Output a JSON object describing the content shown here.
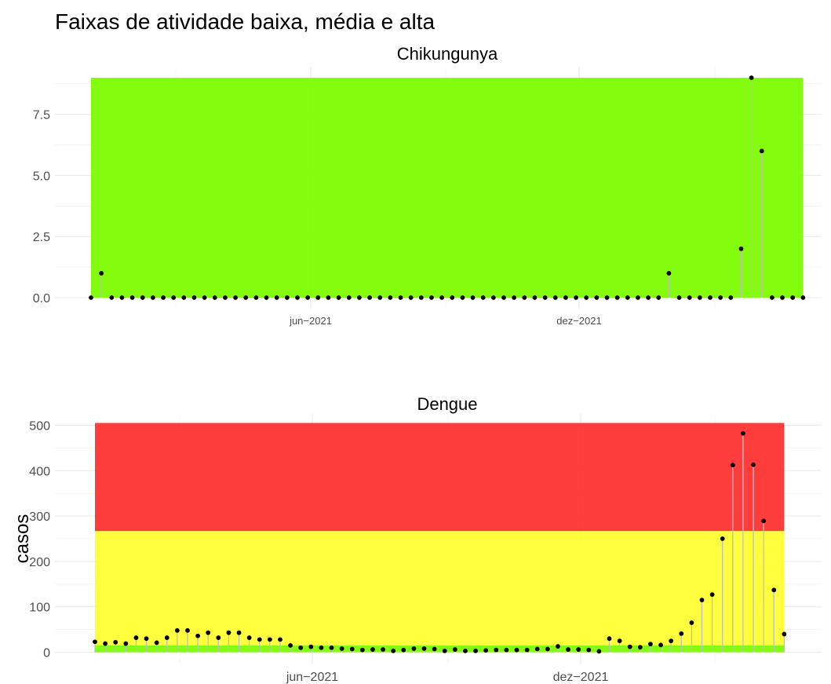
{
  "title": "Faixas de atividade baixa, média e alta",
  "colors": {
    "baixa": "#7cfc00",
    "media": "#ffff33",
    "alta": "#ff3333",
    "stem": "#bebebe",
    "point": "#000000",
    "grid": "#ebebeb"
  },
  "chart_data": [
    {
      "type": "lollipop",
      "title": "Chikungunya",
      "xlabel": "",
      "ylabel": "",
      "x_tick_labels": [
        "jun−2021",
        "dez−2021"
      ],
      "y_tick_labels": [
        "0.0",
        "2.5",
        "5.0",
        "7.5"
      ],
      "y_ticks": [
        0,
        2.5,
        5,
        7.5
      ],
      "ylim": [
        -0.45,
        9.45
      ],
      "bands": [
        {
          "name": "baixa",
          "from": 0,
          "to": 9,
          "color": "#7cfc00"
        }
      ],
      "grid": true,
      "values": [
        0,
        1,
        0,
        0,
        0,
        0,
        0,
        0,
        0,
        0,
        0,
        0,
        0,
        0,
        0,
        0,
        0,
        0,
        0,
        0,
        0,
        0,
        0,
        0,
        0,
        0,
        0,
        0,
        0,
        0,
        0,
        0,
        0,
        0,
        0,
        0,
        0,
        0,
        0,
        0,
        0,
        0,
        0,
        0,
        0,
        0,
        0,
        0,
        0,
        0,
        0,
        0,
        0,
        0,
        0,
        0,
        1,
        0,
        0,
        0,
        0,
        0,
        0,
        2,
        9,
        6,
        0,
        0,
        0,
        0
      ]
    },
    {
      "type": "lollipop",
      "title": "Dengue",
      "xlabel": "",
      "ylabel": "casos",
      "x_tick_labels": [
        "jun−2021",
        "dez−2021"
      ],
      "y_tick_labels": [
        "0",
        "100",
        "200",
        "300",
        "400",
        "500"
      ],
      "y_ticks": [
        0,
        100,
        200,
        300,
        400,
        500
      ],
      "ylim": [
        -25,
        525
      ],
      "bands": [
        {
          "name": "baixa",
          "from": 0,
          "to": 15,
          "color": "#7cfc00"
        },
        {
          "name": "media",
          "from": 15,
          "to": 267,
          "color": "#ffff33"
        },
        {
          "name": "alta",
          "from": 267,
          "to": 505,
          "color": "#ff3333"
        }
      ],
      "grid": true,
      "values": [
        23,
        19,
        22,
        19,
        32,
        30,
        21,
        32,
        48,
        48,
        36,
        43,
        32,
        43,
        43,
        32,
        28,
        28,
        28,
        15,
        10,
        12,
        10,
        10,
        8,
        7,
        5,
        6,
        6,
        3,
        5,
        8,
        8,
        7,
        3,
        6,
        3,
        3,
        4,
        5,
        5,
        5,
        5,
        7,
        7,
        13,
        6,
        6,
        5,
        2,
        30,
        25,
        12,
        11,
        18,
        16,
        25,
        41,
        65,
        115,
        127,
        250,
        412,
        482,
        413,
        289,
        137,
        40
      ]
    }
  ]
}
